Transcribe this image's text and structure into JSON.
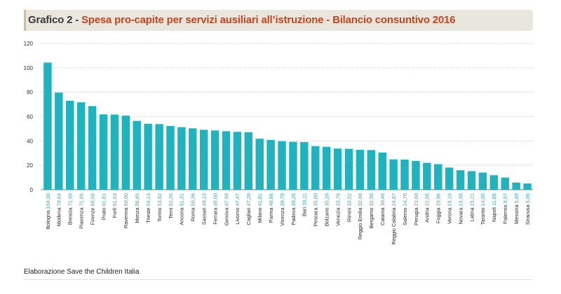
{
  "title_lead": "Grafico 2 - ",
  "title_main": "Spesa pro-capite per servizi ausiliari all’istruzione - Bilancio consuntivo 2016",
  "source": "Elaborazione Save the Children Italia",
  "colors": {
    "bar": "#1fb3c0",
    "value_label": "#1fb3c0",
    "title_accent": "#c4451f",
    "title_bg": "#e9e6dd"
  },
  "chart_data": {
    "type": "bar",
    "categories": [
      "Bologna",
      "Modena",
      "Brescia",
      "Piacenza",
      "Firenze",
      "Prato",
      "Forlì",
      "Ravenna",
      "Monza",
      "Trieste",
      "Torino",
      "Terni",
      "Ancona",
      "Roma",
      "Sassari",
      "Ferrara",
      "Genova",
      "Livorno",
      "Cagliari",
      "Milano",
      "Parma",
      "Vicenza",
      "Padova",
      "Bari",
      "Pescara",
      "Bolzano",
      "Venezia",
      "Rimini",
      "Reggio Emilia",
      "Bergamo",
      "Catania",
      "Reggio Calabria",
      "Salerno",
      "Perugia",
      "Andria",
      "Foggia",
      "Verona",
      "Novara",
      "Latina",
      "Taranto",
      "Napoli",
      "Palermo",
      "Messina",
      "Siracusa"
    ],
    "value_labels": [
      "104,30",
      "79,64",
      "72,99",
      "71,66",
      "68,58",
      "61,81",
      "61,63",
      "60,80",
      "56,45",
      "54,13",
      "53,82",
      "52,26",
      "51,31",
      "50,36",
      "49,13",
      "48,60",
      "47,99",
      "47,47",
      "47,20",
      "41,81",
      "40,86",
      "39,79",
      "39,26",
      "39,11",
      "35,80",
      "35,20",
      "33,76",
      "33,52",
      "32,68",
      "32,50",
      "30,46",
      "24,87",
      "24,70",
      "23,60",
      "22,05",
      "20,96",
      "18,16",
      "15,98",
      "15,21",
      "14,05",
      "11,88",
      "9,97",
      "5,89",
      "5,06"
    ],
    "values": [
      104.3,
      79.64,
      72.99,
      71.66,
      68.58,
      61.81,
      61.63,
      60.8,
      56.45,
      54.13,
      53.82,
      52.26,
      51.31,
      50.36,
      49.13,
      48.6,
      47.99,
      47.47,
      47.2,
      41.81,
      40.86,
      39.79,
      39.26,
      39.11,
      35.8,
      35.2,
      33.76,
      33.52,
      32.68,
      32.5,
      30.46,
      24.87,
      24.7,
      23.6,
      22.05,
      20.96,
      18.16,
      15.98,
      15.21,
      14.05,
      11.88,
      9.97,
      5.89,
      5.06
    ],
    "y_ticks": [
      "0",
      "20",
      "40",
      "60",
      "80",
      "100",
      "120"
    ],
    "ylim": [
      0,
      120
    ],
    "grid": true,
    "legend": "none"
  }
}
